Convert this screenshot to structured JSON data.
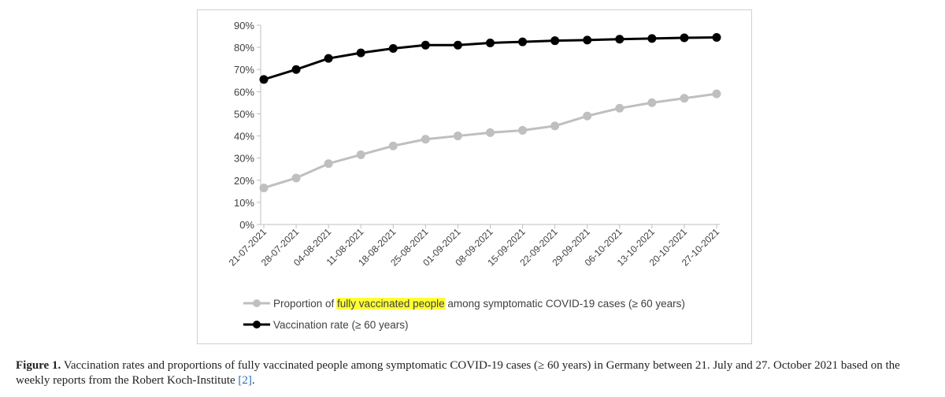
{
  "chart_data": {
    "type": "line",
    "x": [
      "21-07-2021",
      "28-07-2021",
      "04-08-2021",
      "11-08-2021",
      "18-08-2021",
      "25-08-2021",
      "01-09-2021",
      "08-09-2021",
      "15-09-2021",
      "22-09-2021",
      "29-09-2021",
      "06-10-2021",
      "13-10-2021",
      "20-10-2021",
      "27-10-2021"
    ],
    "series": [
      {
        "name_prefix": "Proportion of ",
        "name_highlight": "fully vaccinated people",
        "name_suffix": " among symptomatic COVID-19 cases (≥ 60 years)",
        "color": "#bfbfbf",
        "values": [
          16.5,
          21,
          27.5,
          31.5,
          35.5,
          38.5,
          40,
          41.5,
          42.5,
          44.5,
          49,
          52.5,
          55,
          57,
          59
        ]
      },
      {
        "name": "Vaccination rate (≥ 60 years)",
        "color": "#000000",
        "values": [
          65.5,
          70,
          75,
          77.5,
          79.5,
          81,
          81,
          82,
          82.5,
          83,
          83.3,
          83.7,
          84,
          84.3,
          84.5
        ]
      }
    ],
    "yticks": [
      "0%",
      "10%",
      "20%",
      "30%",
      "40%",
      "50%",
      "60%",
      "70%",
      "80%",
      "90%"
    ],
    "ylim": [
      0,
      90
    ],
    "highlight_color": "#ffff33",
    "legend_position": "bottom",
    "grid": false
  },
  "caption": {
    "label": "Figure 1.",
    "text_before_ref": "  Vaccination rates and proportions of fully vaccinated people among symptomatic COVID-19 cases (≥ 60 years) in Germany between 21. July and 27. October 2021 based on the weekly reports from the Robert Koch-Institute ",
    "ref": "[2]",
    "text_after_ref": "."
  }
}
